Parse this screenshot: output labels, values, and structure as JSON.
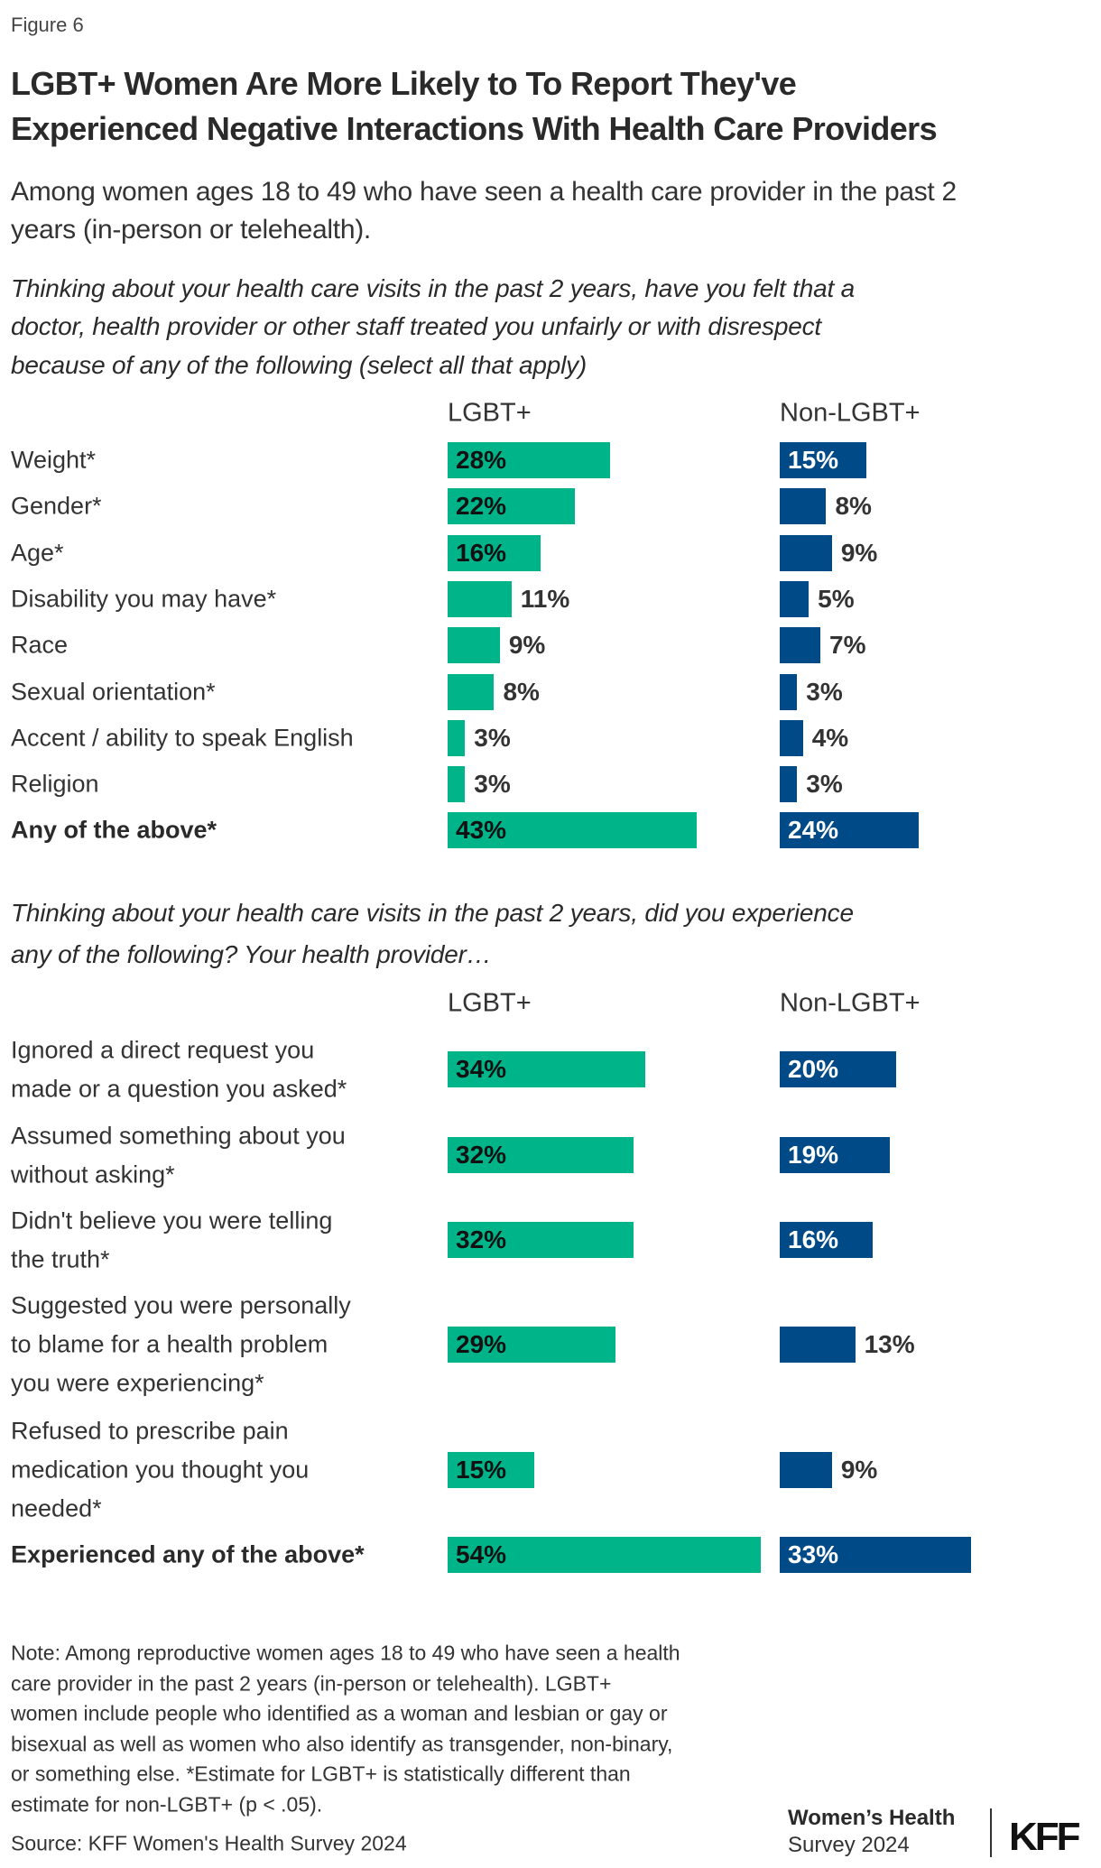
{
  "figure_label": "Figure 6",
  "title_lines": [
    "LGBT+ Women Are More Likely to To Report They've",
    "Experienced Negative Interactions With Health Care Providers"
  ],
  "subtitle_lines": [
    "Among women ages 18 to 49 who have seen a health care provider in the past 2",
    "years (in-person or telehealth)."
  ],
  "colors": {
    "lgbt": "#00b48a",
    "non_lgbt": "#004a87"
  },
  "chart_data": [
    {
      "type": "bar",
      "orientation": "horizontal",
      "title_lines": [
        "Thinking about your health care visits in the past 2 years, have you felt that a",
        "doctor, health provider or other staff treated you unfairly or with disrespect",
        "because of any of the following (select all that apply)"
      ],
      "series_names": [
        "LGBT+",
        "Non-LGBT+"
      ],
      "unit": "%",
      "rows": [
        {
          "label": [
            "Weight*"
          ],
          "lgbt": 28,
          "non_lgbt": 15
        },
        {
          "label": [
            "Gender*"
          ],
          "lgbt": 22,
          "non_lgbt": 8
        },
        {
          "label": [
            "Age*"
          ],
          "lgbt": 16,
          "non_lgbt": 9
        },
        {
          "label": [
            "Disability you may have*"
          ],
          "lgbt": 11,
          "non_lgbt": 5
        },
        {
          "label": [
            "Race"
          ],
          "lgbt": 9,
          "non_lgbt": 7
        },
        {
          "label": [
            "Sexual orientation*"
          ],
          "lgbt": 8,
          "non_lgbt": 3
        },
        {
          "label": [
            "Accent / ability to speak English"
          ],
          "lgbt": 3,
          "non_lgbt": 4
        },
        {
          "label": [
            "Religion"
          ],
          "lgbt": 3,
          "non_lgbt": 3
        },
        {
          "label": [
            "Any of the above*"
          ],
          "lgbt": 43,
          "non_lgbt": 24,
          "bold": true
        }
      ]
    },
    {
      "type": "bar",
      "orientation": "horizontal",
      "title_lines": [
        "Thinking about your health care visits in the past 2 years, did you experience",
        "any of the following? Your health provider…"
      ],
      "series_names": [
        "LGBT+",
        "Non-LGBT+"
      ],
      "unit": "%",
      "rows": [
        {
          "label": [
            "Ignored a direct request you",
            "made or a question you asked*"
          ],
          "lgbt": 34,
          "non_lgbt": 20
        },
        {
          "label": [
            "Assumed something about you",
            "without asking*"
          ],
          "lgbt": 32,
          "non_lgbt": 19
        },
        {
          "label": [
            "Didn't believe you were telling",
            "the truth*"
          ],
          "lgbt": 32,
          "non_lgbt": 16
        },
        {
          "label": [
            "Suggested you were personally",
            "to blame for a health problem",
            "you were experiencing*"
          ],
          "lgbt": 29,
          "non_lgbt": 13
        },
        {
          "label": [
            "Refused to prescribe pain",
            "medication you thought you",
            "needed*"
          ],
          "lgbt": 15,
          "non_lgbt": 9
        },
        {
          "label": [
            "Experienced any of the above*"
          ],
          "lgbt": 54,
          "non_lgbt": 33,
          "bold": true
        }
      ]
    }
  ],
  "note_lines": [
    "Note: Among reproductive women ages 18 to 49 who have seen a health",
    "care provider in the past 2 years (in-person or telehealth). LGBT+",
    "women include people who identified as a woman and lesbian or gay or",
    "bisexual as well as women who also identify as transgender, non-binary,",
    "or something else. *Estimate for LGBT+ is statistically different than",
    "estimate for non-LGBT+ (p < .05)."
  ],
  "source": "Source: KFF Women's Health Survey 2024",
  "branding": {
    "survey_line1": "Women’s Health",
    "survey_line2": "Survey 2024",
    "logo": "KFF"
  }
}
